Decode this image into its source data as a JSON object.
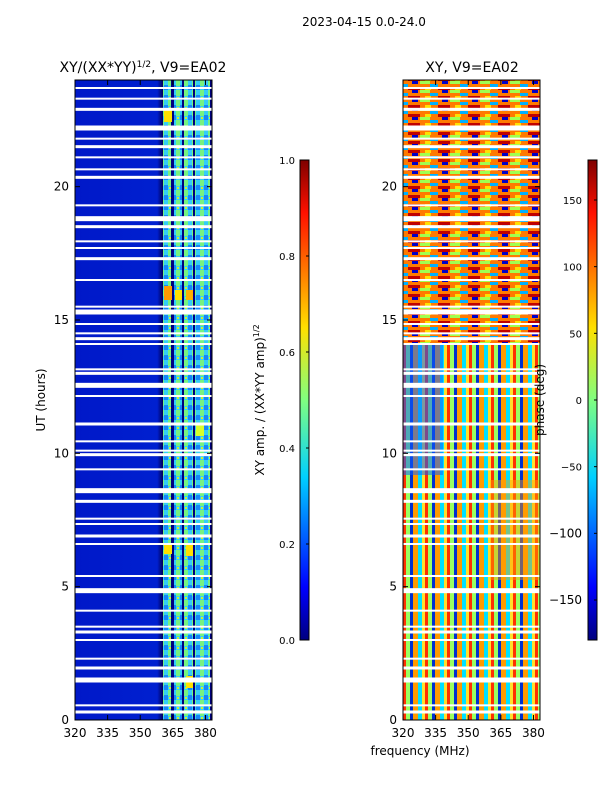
{
  "suptitle": "2023-04-15 0.0-24.0",
  "colors": {
    "background_blue": "#00007f",
    "mid_blue": "#0a3cf0",
    "gap_white": "#ffffff",
    "axis": "#000000"
  },
  "chart_data": [
    {
      "type": "heatmap",
      "title_prefix": "XY/(XX*YY)",
      "title_exponent": "1/2",
      "title_suffix": ", V9=EA02",
      "xlabel": "",
      "ylabel": "UT (hours)",
      "xlim": [
        320,
        383
      ],
      "ylim": [
        0,
        24
      ],
      "xticks": [
        320,
        335,
        350,
        365,
        380
      ],
      "yticks": [
        0,
        5,
        10,
        15,
        20
      ],
      "colormap": "jet",
      "description_values": "XY amplitude normalized; mostly low (~0.05) across 320-360 MHz, higher (0.3-0.8) in 360-383 MHz band",
      "colorbar": {
        "label_prefix": "XY amp. / (XX*YY amp)",
        "label_exponent": "1/2",
        "range": [
          0.0,
          1.0
        ],
        "ticks": [
          "0.0",
          "0.2",
          "0.4",
          "0.6",
          "0.8",
          "1.0"
        ]
      }
    },
    {
      "type": "heatmap",
      "title": "XY, V9=EA02",
      "xlabel": "frequency (MHz)",
      "ylabel": "",
      "xlim": [
        320,
        383
      ],
      "ylim": [
        0,
        24
      ],
      "xticks": [
        320,
        335,
        350,
        365,
        380
      ],
      "yticks": [
        0,
        5,
        10,
        15,
        20
      ],
      "colormap": "jet",
      "description_values": "XY phase in degrees spanning -180 to 180, fringing vertical/horizontal bands",
      "colorbar": {
        "label": "phase (deg)",
        "range": [
          -180,
          180
        ],
        "ticks": [
          "−150",
          "−100",
          "−50",
          "0",
          "50",
          "100",
          "150"
        ]
      }
    }
  ],
  "gaps_ut_hours": [
    0.3,
    0.55,
    1.5,
    1.95,
    2.3,
    3.0,
    3.3,
    3.5,
    4.1,
    4.85,
    5.4,
    6.6,
    6.9,
    7.35,
    7.55,
    8.2,
    8.6,
    9.4,
    9.95,
    10.1,
    10.45,
    11.1,
    12.15,
    12.55,
    13.0,
    13.15,
    14.1,
    14.3,
    14.5,
    14.85,
    15.3,
    15.5,
    16.5,
    17.3,
    17.7,
    17.95,
    18.5,
    18.8,
    19.3,
    20.35,
    20.65,
    21.1,
    21.5,
    21.8,
    22.2,
    22.9,
    23.3,
    23.7
  ]
}
